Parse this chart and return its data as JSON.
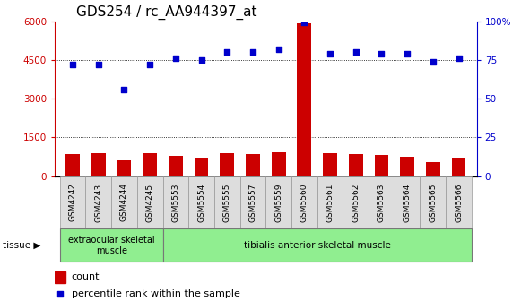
{
  "title": "GDS254 / rc_AA944397_at",
  "categories": [
    "GSM4242",
    "GSM4243",
    "GSM4244",
    "GSM4245",
    "GSM5553",
    "GSM5554",
    "GSM5555",
    "GSM5557",
    "GSM5559",
    "GSM5560",
    "GSM5561",
    "GSM5562",
    "GSM5563",
    "GSM5564",
    "GSM5565",
    "GSM5566"
  ],
  "counts": [
    850,
    870,
    620,
    870,
    780,
    720,
    870,
    840,
    920,
    5900,
    880,
    860,
    830,
    750,
    530,
    730
  ],
  "percentiles": [
    72,
    72,
    56,
    72,
    76,
    75,
    80,
    80,
    82,
    99,
    79,
    80,
    79,
    79,
    74,
    76
  ],
  "tissue_groups": [
    {
      "label": "extraocular skeletal\nmuscle",
      "start": 0,
      "end": 3,
      "color": "#90EE90"
    },
    {
      "label": "tibialis anterior skeletal muscle",
      "start": 4,
      "end": 15,
      "color": "#90EE90"
    }
  ],
  "left_ylim": [
    0,
    6000
  ],
  "right_ylim": [
    0,
    100
  ],
  "left_yticks": [
    0,
    1500,
    3000,
    4500,
    6000
  ],
  "right_yticks": [
    0,
    25,
    50,
    75,
    100
  ],
  "left_ytick_labels": [
    "0",
    "1500",
    "3000",
    "4500",
    "6000"
  ],
  "right_ytick_labels": [
    "0",
    "25",
    "50",
    "75",
    "100%"
  ],
  "bar_color": "#CC0000",
  "dot_color": "#0000CC",
  "grid_color": "#000000",
  "bg_color": "#FFFFFF",
  "tickbox_color": "#DDDDDD",
  "title_fontsize": 11,
  "axis_label_color_left": "#CC0000",
  "axis_label_color_right": "#0000CC",
  "legend_count_label": "count",
  "legend_percentile_label": "percentile rank within the sample",
  "tissue_label": "tissue"
}
